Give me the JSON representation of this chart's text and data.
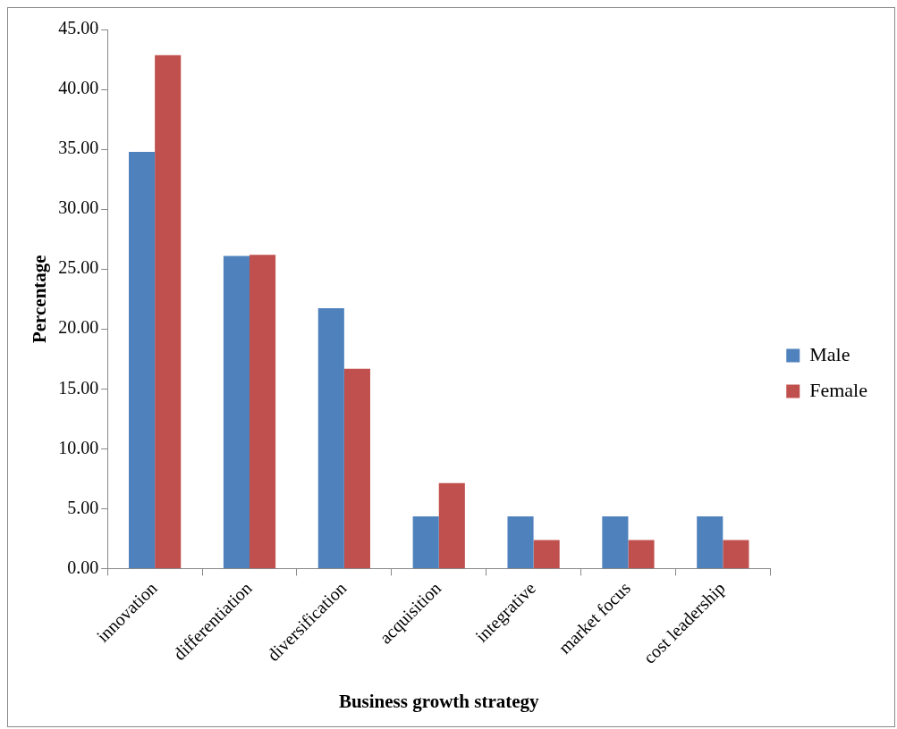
{
  "chart_data": {
    "type": "bar",
    "xlabel": "Business growth strategy",
    "ylabel": "Percentage",
    "categories": [
      "innovation",
      "differentiation",
      "diversification",
      "acquisition",
      "integrative",
      "market focus",
      "cost leadership"
    ],
    "series": [
      {
        "name": "Male",
        "color": "#4f81bd",
        "values": [
          34.78,
          26.09,
          21.74,
          4.35,
          4.35,
          4.35,
          4.35
        ]
      },
      {
        "name": "Female",
        "color": "#c0504d",
        "values": [
          42.86,
          26.19,
          16.67,
          7.14,
          2.38,
          2.38,
          2.38
        ]
      }
    ],
    "ylim": [
      0,
      45
    ],
    "yticks": [
      {
        "value": 0,
        "label": "0.00"
      },
      {
        "value": 5,
        "label": "5.00"
      },
      {
        "value": 10,
        "label": "10.00"
      },
      {
        "value": 15,
        "label": "15.00"
      },
      {
        "value": 20,
        "label": "20.00"
      },
      {
        "value": 25,
        "label": "25.00"
      },
      {
        "value": 30,
        "label": "30.00"
      },
      {
        "value": 35,
        "label": "35.00"
      },
      {
        "value": 40,
        "label": "40.00"
      },
      {
        "value": 45,
        "label": "45.00"
      }
    ],
    "grid": false,
    "legend": "right"
  }
}
